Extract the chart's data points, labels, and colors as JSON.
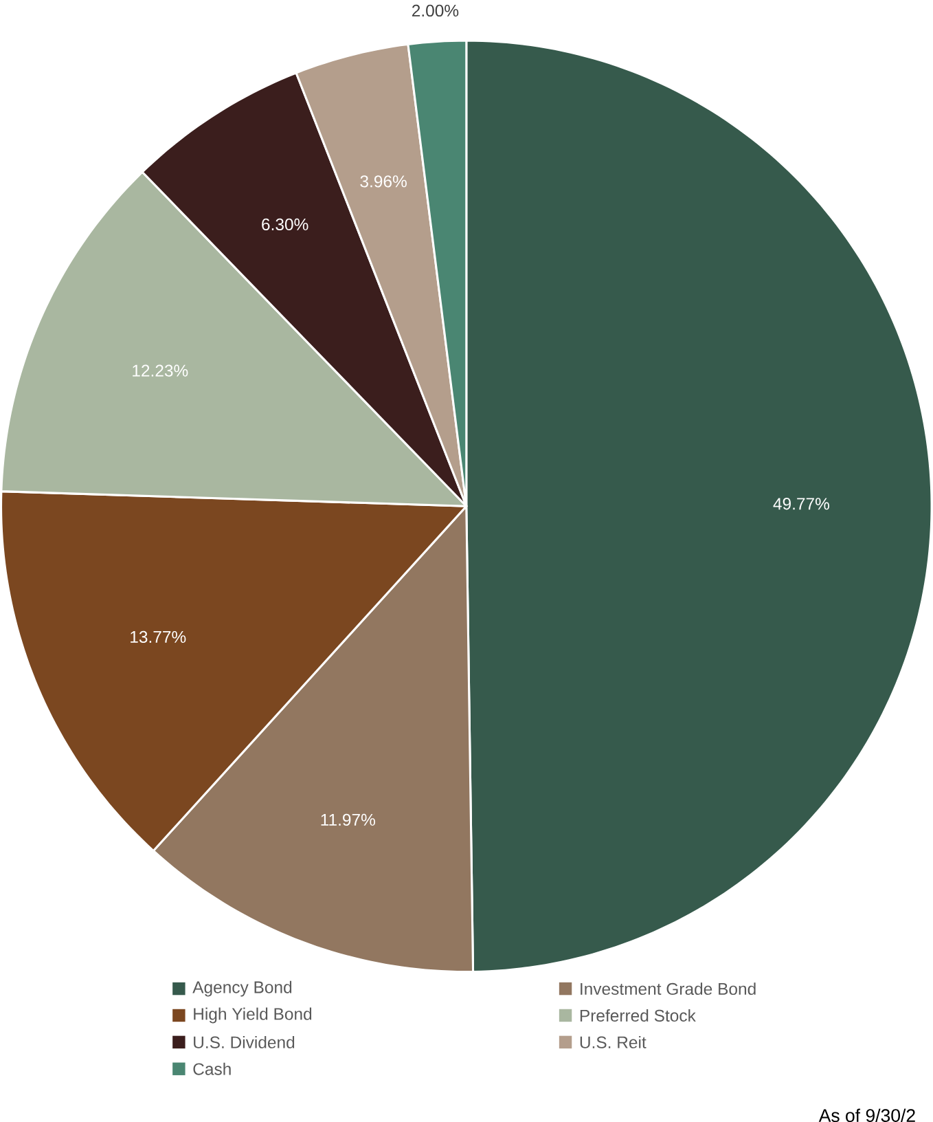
{
  "chart_data": {
    "type": "pie",
    "categories": [
      "Agency Bond",
      "Investment Grade Bond",
      "High Yield Bond",
      "Preferred Stock",
      "U.S. Dividend",
      "U.S. Reit",
      "Cash"
    ],
    "values": [
      49.77,
      11.97,
      13.77,
      12.23,
      6.3,
      3.96,
      2.0
    ],
    "colors": [
      "#365a4c",
      "#927760",
      "#7b4720",
      "#a9b7a0",
      "#3b1e1d",
      "#b49e8c",
      "#4a8672"
    ],
    "value_labels": [
      "49.77%",
      "11.97%",
      "13.77%",
      "12.23%",
      "6.30%",
      "3.96%",
      "2.00%"
    ],
    "legend": "bottom",
    "annotations": [
      "As of 9/30/2"
    ]
  }
}
